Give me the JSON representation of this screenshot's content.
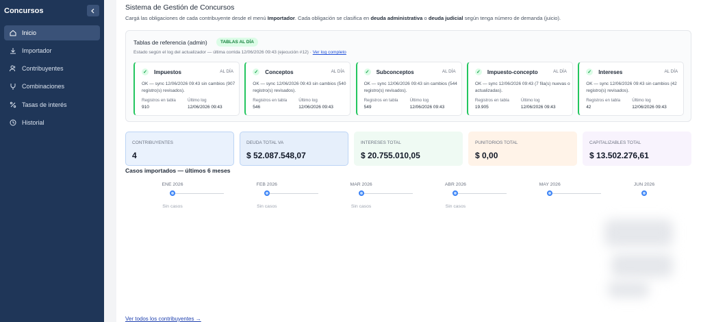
{
  "sidebar": {
    "title": "Concursos",
    "nav": [
      "Inicio",
      "Importador",
      "Contribuyentes",
      "Combinaciones",
      "Tasas de interés",
      "Historial"
    ]
  },
  "header": {
    "title": "Sistema de Gestión de Concursos",
    "description": [
      "Cargá las obligaciones de cada contribuyente desde el menú ",
      "Importador",
      ". Cada obligación se clasifica en ",
      "deuda administrativa",
      " o ",
      "deuda judicial",
      " según tenga número de demanda (juicio)."
    ]
  },
  "reference_panel": {
    "title": "Tablas de referencia (admin)",
    "badge": "TABLAS AL DÍA",
    "status": "Estado según el log del actualizador — última corrida 12/06/2026 09:43 (ejecución #12) ·",
    "link": "Ver log completo",
    "cards": [
      {
        "name": "Impuestos",
        "status": "AL DÍA",
        "message": "OK — sync 12/06/2026 09:43 sin cambios (907 registro(s) revisados).",
        "records_label": "Registros en tabla",
        "records": "910",
        "log_label": "Último log",
        "log": "12/06/2026 09:43"
      },
      {
        "name": "Conceptos",
        "status": "AL DÍA",
        "message": "OK — sync 12/06/2026 09:43 sin cambios (540 registro(s) revisados).",
        "records_label": "Registros en tabla",
        "records": "546",
        "log_label": "Último log",
        "log": "12/06/2026 09:43"
      },
      {
        "name": "Subconceptos",
        "status": "AL DÍA",
        "message": "OK — sync 12/06/2026 09:43 sin cambios (544 registro(s) revisados).",
        "records_label": "Registros en tabla",
        "records": "549",
        "log_label": "Último log",
        "log": "12/06/2026 09:43"
      },
      {
        "name": "Impuesto-concepto",
        "status": "AL DÍA",
        "message": "OK — sync 12/06/2026 09:43 (7 fila(s) nuevas o actualizadas).",
        "records_label": "Registros en tabla",
        "records": "19.905",
        "log_label": "Último log",
        "log": "12/06/2026 09:43"
      },
      {
        "name": "Intereses",
        "status": "AL DÍA",
        "message": "OK — sync 12/06/2026 09:43 sin cambios (42 registro(s) revisados).",
        "records_label": "Registros en tabla",
        "records": "42",
        "log_label": "Último log",
        "log": "12/06/2026 09:43"
      }
    ]
  },
  "stats": [
    {
      "label": "CONTRIBUYENTES",
      "value": "4"
    },
    {
      "label": "DEUDA TOTAL VA",
      "value": "$ 52.087.548,07"
    },
    {
      "label": "INTERESES TOTAL",
      "value": "$ 20.755.010,05"
    },
    {
      "label": "PUNITORIOS TOTAL",
      "value": "$ 0,00"
    },
    {
      "label": "CAPITALIZABLES TOTAL",
      "value": "$ 13.502.276,61"
    }
  ],
  "timeline": {
    "title": "Casos importados — últimos 6 meses",
    "months": [
      {
        "label": "ENE 2026",
        "note": "Sin casos"
      },
      {
        "label": "FEB 2026",
        "note": "Sin casos"
      },
      {
        "label": "MAR 2026",
        "note": "Sin casos"
      },
      {
        "label": "ABR 2026",
        "note": "Sin casos"
      },
      {
        "label": "MAY 2026"
      },
      {
        "label": "JUN 2026"
      }
    ]
  },
  "footer_link": "Ver todos los contribuyentes →"
}
